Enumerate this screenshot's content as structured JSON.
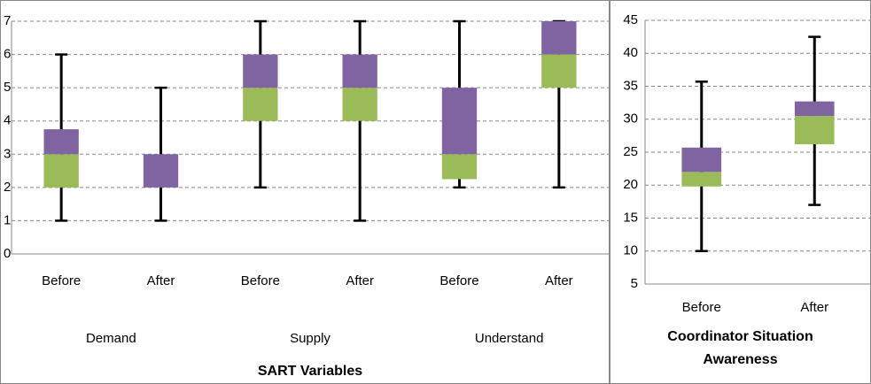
{
  "chart_data": [
    {
      "type": "boxplot",
      "categories": [
        "Before",
        "After",
        "Before",
        "After",
        "Before",
        "After"
      ],
      "groups": [
        "Demand",
        "Supply",
        "Understand"
      ],
      "x_label": "SART Variables",
      "min": [
        1,
        1,
        2,
        1,
        2,
        2
      ],
      "q1": [
        2,
        2,
        4,
        4,
        2.25,
        5
      ],
      "median": [
        3,
        2,
        5,
        5,
        3,
        6
      ],
      "q3": [
        3.75,
        3,
        6,
        6,
        5,
        7
      ],
      "max": [
        6,
        5,
        7,
        7,
        7,
        7
      ],
      "lower_color": "#9bbb59",
      "upper_color": "#8064a2",
      "ylim": [
        0,
        7
      ],
      "yticks": [
        0,
        1,
        2,
        3,
        4,
        5,
        6,
        7
      ],
      "grid": true
    },
    {
      "type": "boxplot",
      "categories": [
        "Before",
        "After"
      ],
      "x_label": "Coordinator Situation Awareness",
      "min": [
        10,
        17
      ],
      "q1": [
        19.8,
        26.2
      ],
      "median": [
        22,
        30.5
      ],
      "q3": [
        25.7,
        32.7
      ],
      "max": [
        35.7,
        42.5
      ],
      "lower_color": "#9bbb59",
      "upper_color": "#8064a2",
      "ylim": [
        5,
        45
      ],
      "yticks": [
        5,
        10,
        15,
        20,
        25,
        30,
        35,
        40,
        45
      ],
      "grid": true
    }
  ]
}
